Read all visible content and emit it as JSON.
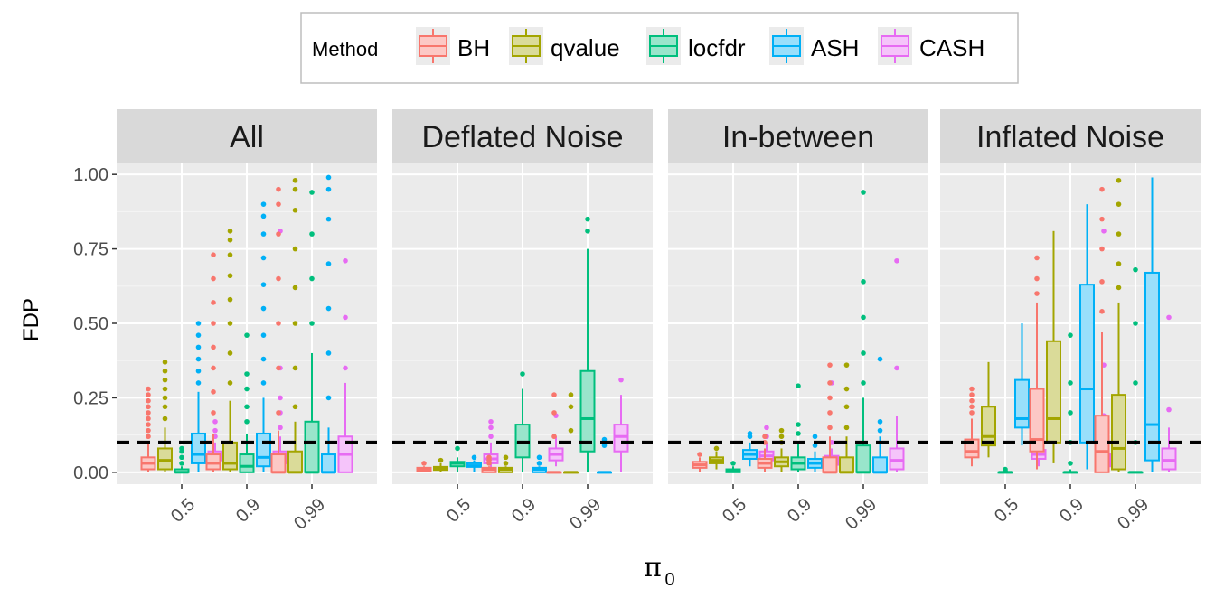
{
  "chart_data": {
    "type": "boxplot",
    "facets": [
      "All",
      "Deflated Noise",
      "In-between",
      "Inflated Noise"
    ],
    "categories": [
      "0.5",
      "0.9",
      "0.99"
    ],
    "xlabel_main": "π",
    "xlabel_sub": "0",
    "ylabel": "FDP",
    "ylim": [
      -0.04,
      1.04
    ],
    "yticks": [
      0,
      0.25,
      0.5,
      0.75,
      1
    ],
    "ytick_labels": [
      "0.00",
      "0.25",
      "0.50",
      "0.75",
      "1.00"
    ],
    "reference_line": 0.1,
    "grid": true,
    "legend": {
      "title": "Method",
      "placement": "top",
      "entries": [
        "BH",
        "qvalue",
        "locfdr",
        "ASH",
        "CASH"
      ]
    },
    "colors": {
      "BH": "#F8766D",
      "qvalue": "#A3A500",
      "locfdr": "#00BF7D",
      "ASH": "#00B0F6",
      "CASH": "#E76BF3"
    },
    "series": [
      {
        "facet": "All",
        "category": "0.5",
        "boxes": {
          "BH": {
            "min": 0.0,
            "q1": 0.01,
            "median": 0.03,
            "q3": 0.05,
            "max": 0.1,
            "outliers": [
              0.12,
              0.14,
              0.16,
              0.18,
              0.2,
              0.22,
              0.24,
              0.26,
              0.28
            ]
          },
          "qvalue": {
            "min": 0.0,
            "q1": 0.01,
            "median": 0.04,
            "q3": 0.08,
            "max": 0.15,
            "outliers": [
              0.18,
              0.22,
              0.25,
              0.28,
              0.31,
              0.34,
              0.37
            ]
          },
          "locfdr": {
            "min": 0.0,
            "q1": 0.0,
            "median": 0.0,
            "q3": 0.01,
            "max": 0.02,
            "outliers": [
              0.03,
              0.05,
              0.07,
              0.08
            ]
          },
          "ASH": {
            "min": 0.0,
            "q1": 0.03,
            "median": 0.06,
            "q3": 0.13,
            "max": 0.27,
            "outliers": [
              0.3,
              0.34,
              0.38,
              0.42,
              0.46,
              0.5
            ]
          },
          "CASH": {
            "min": 0.01,
            "q1": 0.04,
            "median": 0.05,
            "q3": 0.07,
            "max": 0.1,
            "outliers": [
              0.12,
              0.14,
              0.17
            ]
          }
        }
      },
      {
        "facet": "All",
        "category": "0.9",
        "boxes": {
          "BH": {
            "min": 0.0,
            "q1": 0.01,
            "median": 0.03,
            "q3": 0.06,
            "max": 0.13,
            "outliers": [
              0.2,
              0.27,
              0.35,
              0.42,
              0.5,
              0.57,
              0.65,
              0.73
            ]
          },
          "qvalue": {
            "min": 0.0,
            "q1": 0.01,
            "median": 0.03,
            "q3": 0.1,
            "max": 0.24,
            "outliers": [
              0.3,
              0.4,
              0.5,
              0.58,
              0.66,
              0.73,
              0.78,
              0.81
            ]
          },
          "locfdr": {
            "min": 0.0,
            "q1": 0.0,
            "median": 0.02,
            "q3": 0.06,
            "max": 0.13,
            "outliers": [
              0.17,
              0.22,
              0.28,
              0.33,
              0.46
            ]
          },
          "ASH": {
            "min": 0.0,
            "q1": 0.02,
            "median": 0.05,
            "q3": 0.13,
            "max": 0.25,
            "outliers": [
              0.3,
              0.38,
              0.46,
              0.55,
              0.63,
              0.72,
              0.8,
              0.86,
              0.9
            ]
          },
          "CASH": {
            "min": 0.01,
            "q1": 0.03,
            "median": 0.05,
            "q3": 0.07,
            "max": 0.12,
            "outliers": [
              0.15,
              0.2,
              0.25,
              0.35,
              0.81
            ]
          }
        }
      },
      {
        "facet": "All",
        "category": "0.99",
        "boxes": {
          "BH": {
            "min": 0.0,
            "q1": 0.0,
            "median": 0.0,
            "q3": 0.06,
            "max": 0.14,
            "outliers": [
              0.2,
              0.35,
              0.5,
              0.65,
              0.8,
              0.9,
              0.95
            ]
          },
          "qvalue": {
            "min": 0.0,
            "q1": 0.0,
            "median": 0.0,
            "q3": 0.07,
            "max": 0.17,
            "outliers": [
              0.22,
              0.35,
              0.5,
              0.62,
              0.75,
              0.88,
              0.95,
              0.98
            ]
          },
          "locfdr": {
            "min": 0.0,
            "q1": 0.0,
            "median": 0.0,
            "q3": 0.17,
            "max": 0.4,
            "outliers": [
              0.5,
              0.65,
              0.8,
              0.94
            ]
          },
          "ASH": {
            "min": 0.0,
            "q1": 0.0,
            "median": 0.0,
            "q3": 0.06,
            "max": 0.15,
            "outliers": [
              0.25,
              0.4,
              0.55,
              0.7,
              0.85,
              0.95,
              0.99
            ]
          },
          "CASH": {
            "min": 0.0,
            "q1": 0.0,
            "median": 0.06,
            "q3": 0.12,
            "max": 0.3,
            "outliers": [
              0.35,
              0.52,
              0.71
            ]
          }
        }
      },
      {
        "facet": "Deflated Noise",
        "category": "0.5",
        "boxes": {
          "BH": {
            "min": 0.0,
            "q1": 0.005,
            "median": 0.01,
            "q3": 0.015,
            "max": 0.02,
            "outliers": [
              0.03
            ]
          },
          "qvalue": {
            "min": 0.0,
            "q1": 0.008,
            "median": 0.012,
            "q3": 0.018,
            "max": 0.03,
            "outliers": [
              0.04
            ]
          },
          "locfdr": {
            "min": 0.0,
            "q1": 0.02,
            "median": 0.03,
            "q3": 0.035,
            "max": 0.05,
            "outliers": [
              0.08
            ]
          },
          "ASH": {
            "min": 0.0,
            "q1": 0.018,
            "median": 0.022,
            "q3": 0.03,
            "max": 0.04,
            "outliers": [
              0.05
            ]
          },
          "CASH": {
            "min": 0.01,
            "q1": 0.03,
            "median": 0.045,
            "q3": 0.06,
            "max": 0.1,
            "outliers": [
              0.12,
              0.15,
              0.17
            ]
          }
        }
      },
      {
        "facet": "Deflated Noise",
        "category": "0.9",
        "boxes": {
          "BH": {
            "min": 0.0,
            "q1": 0.0,
            "median": 0.01,
            "q3": 0.015,
            "max": 0.02,
            "outliers": [
              0.03,
              0.04,
              0.05
            ]
          },
          "qvalue": {
            "min": 0.0,
            "q1": 0.0,
            "median": 0.01,
            "q3": 0.015,
            "max": 0.02,
            "outliers": [
              0.03,
              0.05
            ]
          },
          "locfdr": {
            "min": 0.0,
            "q1": 0.05,
            "median": 0.1,
            "q3": 0.16,
            "max": 0.28,
            "outliers": [
              0.33
            ]
          },
          "ASH": {
            "min": 0.0,
            "q1": 0.0,
            "median": 0.01,
            "q3": 0.015,
            "max": 0.02,
            "outliers": [
              0.03,
              0.05
            ]
          },
          "CASH": {
            "min": 0.02,
            "q1": 0.04,
            "median": 0.06,
            "q3": 0.08,
            "max": 0.12,
            "outliers": [
              0.19
            ]
          }
        }
      },
      {
        "facet": "Deflated Noise",
        "category": "0.99",
        "boxes": {
          "BH": {
            "min": 0.0,
            "q1": 0.0,
            "median": 0.0,
            "q3": 0.0,
            "max": 0.0,
            "outliers": [
              0.12,
              0.2,
              0.26
            ]
          },
          "qvalue": {
            "min": 0.0,
            "q1": 0.0,
            "median": 0.0,
            "q3": 0.0,
            "max": 0.0,
            "outliers": [
              0.14,
              0.22,
              0.26
            ]
          },
          "locfdr": {
            "min": 0.0,
            "q1": 0.07,
            "median": 0.18,
            "q3": 0.34,
            "max": 0.75,
            "outliers": [
              0.81,
              0.85
            ]
          },
          "ASH": {
            "min": 0.0,
            "q1": 0.0,
            "median": 0.0,
            "q3": 0.0,
            "max": 0.0,
            "outliers": [
              0.09,
              0.11
            ]
          },
          "CASH": {
            "min": 0.0,
            "q1": 0.07,
            "median": 0.12,
            "q3": 0.16,
            "max": 0.26,
            "outliers": [
              0.31
            ]
          }
        }
      },
      {
        "facet": "In-between",
        "category": "0.5",
        "boxes": {
          "BH": {
            "min": 0.0,
            "q1": 0.015,
            "median": 0.025,
            "q3": 0.035,
            "max": 0.05,
            "outliers": [
              0.06
            ]
          },
          "qvalue": {
            "min": 0.01,
            "q1": 0.03,
            "median": 0.04,
            "q3": 0.05,
            "max": 0.07,
            "outliers": [
              0.08
            ]
          },
          "locfdr": {
            "min": 0.0,
            "q1": 0.0,
            "median": 0.005,
            "q3": 0.01,
            "max": 0.02,
            "outliers": [
              0.03
            ]
          },
          "ASH": {
            "min": 0.02,
            "q1": 0.045,
            "median": 0.06,
            "q3": 0.075,
            "max": 0.1,
            "outliers": [
              0.12,
              0.13
            ]
          },
          "CASH": {
            "min": 0.02,
            "q1": 0.04,
            "median": 0.055,
            "q3": 0.07,
            "max": 0.1,
            "outliers": [
              0.12,
              0.15
            ]
          }
        }
      },
      {
        "facet": "In-between",
        "category": "0.9",
        "boxes": {
          "BH": {
            "min": 0.0,
            "q1": 0.015,
            "median": 0.03,
            "q3": 0.045,
            "max": 0.08,
            "outliers": [
              0.1,
              0.12
            ]
          },
          "qvalue": {
            "min": 0.0,
            "q1": 0.02,
            "median": 0.035,
            "q3": 0.05,
            "max": 0.08,
            "outliers": [
              0.1,
              0.12,
              0.14
            ]
          },
          "locfdr": {
            "min": 0.0,
            "q1": 0.01,
            "median": 0.03,
            "q3": 0.05,
            "max": 0.1,
            "outliers": [
              0.13,
              0.16,
              0.29
            ]
          },
          "ASH": {
            "min": 0.0,
            "q1": 0.015,
            "median": 0.03,
            "q3": 0.045,
            "max": 0.07,
            "outliers": [
              0.09,
              0.12
            ]
          },
          "CASH": {
            "min": 0.01,
            "q1": 0.025,
            "median": 0.04,
            "q3": 0.055,
            "max": 0.08,
            "outliers": [
              0.1,
              0.3
            ]
          }
        }
      },
      {
        "facet": "In-between",
        "category": "0.99",
        "boxes": {
          "BH": {
            "min": 0.0,
            "q1": 0.0,
            "median": 0.0,
            "q3": 0.05,
            "max": 0.12,
            "outliers": [
              0.15,
              0.2,
              0.25,
              0.3,
              0.36
            ]
          },
          "qvalue": {
            "min": 0.0,
            "q1": 0.0,
            "median": 0.0,
            "q3": 0.05,
            "max": 0.12,
            "outliers": [
              0.15,
              0.22,
              0.28,
              0.36
            ]
          },
          "locfdr": {
            "min": 0.0,
            "q1": 0.0,
            "median": 0.0,
            "q3": 0.09,
            "max": 0.25,
            "outliers": [
              0.3,
              0.4,
              0.52,
              0.64,
              0.94
            ]
          },
          "ASH": {
            "min": 0.0,
            "q1": 0.0,
            "median": 0.0,
            "q3": 0.05,
            "max": 0.12,
            "outliers": [
              0.14,
              0.17,
              0.38
            ]
          },
          "CASH": {
            "min": 0.0,
            "q1": 0.01,
            "median": 0.04,
            "q3": 0.08,
            "max": 0.19,
            "outliers": [
              0.35,
              0.71
            ]
          }
        }
      },
      {
        "facet": "Inflated Noise",
        "category": "0.5",
        "boxes": {
          "BH": {
            "min": 0.02,
            "q1": 0.05,
            "median": 0.07,
            "q3": 0.11,
            "max": 0.18,
            "outliers": [
              0.2,
              0.22,
              0.24,
              0.26,
              0.28
            ]
          },
          "qvalue": {
            "min": 0.05,
            "q1": 0.09,
            "median": 0.12,
            "q3": 0.22,
            "max": 0.37,
            "outliers": []
          },
          "locfdr": {
            "min": 0.0,
            "q1": 0.0,
            "median": 0.0,
            "q3": 0.0,
            "max": 0.0,
            "outliers": [
              0.005,
              0.01
            ]
          },
          "ASH": {
            "min": 0.09,
            "q1": 0.15,
            "median": 0.18,
            "q3": 0.31,
            "max": 0.5,
            "outliers": []
          },
          "CASH": {
            "min": 0.02,
            "q1": 0.045,
            "median": 0.06,
            "q3": 0.075,
            "max": 0.1,
            "outliers": [
              0.12,
              0.14
            ]
          }
        }
      },
      {
        "facet": "Inflated Noise",
        "category": "0.9",
        "boxes": {
          "BH": {
            "min": 0.01,
            "q1": 0.07,
            "median": 0.11,
            "q3": 0.28,
            "max": 0.57,
            "outliers": [
              0.6,
              0.65,
              0.72
            ]
          },
          "qvalue": {
            "min": 0.03,
            "q1": 0.1,
            "median": 0.18,
            "q3": 0.44,
            "max": 0.81,
            "outliers": []
          },
          "locfdr": {
            "min": 0.0,
            "q1": 0.0,
            "median": 0.0,
            "q3": 0.0,
            "max": 0.01,
            "outliers": [
              0.03,
              0.1,
              0.2,
              0.3,
              0.46
            ]
          },
          "ASH": {
            "min": 0.01,
            "q1": 0.1,
            "median": 0.28,
            "q3": 0.63,
            "max": 0.9,
            "outliers": []
          },
          "CASH": {
            "min": 0.01,
            "q1": 0.02,
            "median": 0.04,
            "q3": 0.06,
            "max": 0.09,
            "outliers": [
              0.12,
              0.19,
              0.36,
              0.81
            ]
          }
        }
      },
      {
        "facet": "Inflated Noise",
        "category": "0.99",
        "boxes": {
          "BH": {
            "min": 0.0,
            "q1": 0.0,
            "median": 0.07,
            "q3": 0.19,
            "max": 0.47,
            "outliers": [
              0.54,
              0.64,
              0.75,
              0.85,
              0.95
            ]
          },
          "qvalue": {
            "min": 0.0,
            "q1": 0.01,
            "median": 0.08,
            "q3": 0.26,
            "max": 0.57,
            "outliers": [
              0.62,
              0.7,
              0.8,
              0.9,
              0.98
            ]
          },
          "locfdr": {
            "min": 0.0,
            "q1": 0.0,
            "median": 0.0,
            "q3": 0.0,
            "max": 0.0,
            "outliers": [
              0.1,
              0.3,
              0.5,
              0.68
            ]
          },
          "ASH": {
            "min": 0.0,
            "q1": 0.04,
            "median": 0.16,
            "q3": 0.67,
            "max": 0.99,
            "outliers": []
          },
          "CASH": {
            "min": 0.0,
            "q1": 0.01,
            "median": 0.04,
            "q3": 0.08,
            "max": 0.15,
            "outliers": [
              0.21,
              0.52
            ]
          }
        }
      }
    ]
  }
}
